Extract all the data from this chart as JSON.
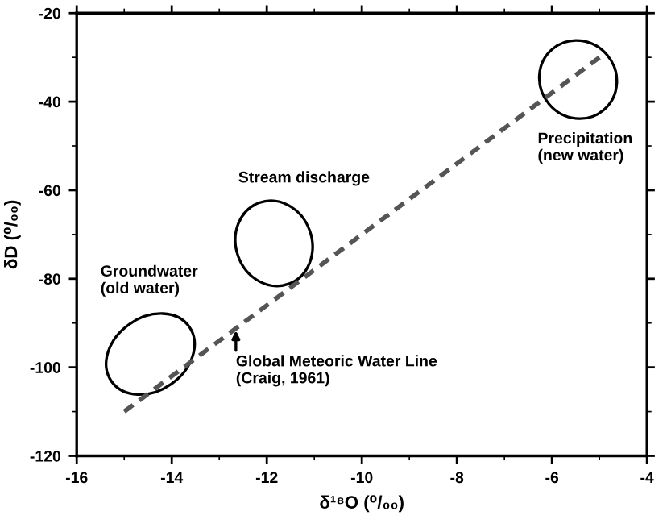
{
  "chart_data": {
    "type": "line",
    "xlabel": "δ¹⁸O (⁰/₀₀)",
    "ylabel": "δD (⁰/₀₀)",
    "xlim": [
      -16,
      -4
    ],
    "xticks": [
      -16,
      -14,
      -12,
      -10,
      -8,
      -6,
      -4
    ],
    "ylim": [
      -120,
      -20
    ],
    "yticks": [
      -120,
      -100,
      -80,
      -60,
      -40,
      -20
    ],
    "grid": false,
    "legend": false,
    "marker": "none",
    "line_style": "dashed",
    "series": [
      {
        "color": "#555555",
        "x": [
          -15,
          -5
        ],
        "values": [
          -110,
          -30
        ]
      }
    ],
    "annotations": [
      "Groundwater\n(old water)",
      "Stream discharge",
      "Precipitation\n(new water)",
      {
        "text": "Global Meteoric Water Line\n(Craig, 1961)",
        "x": -12.65,
        "y": -91.2
      }
    ]
  }
}
